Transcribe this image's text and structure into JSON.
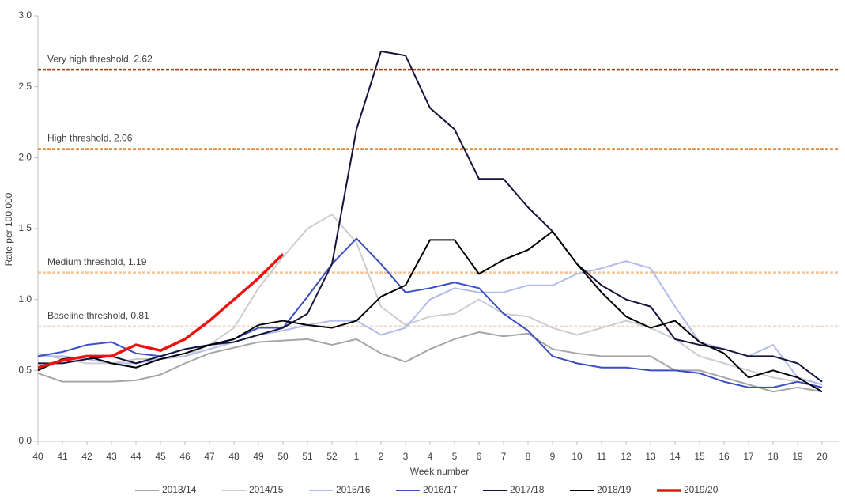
{
  "chart_data": {
    "type": "line",
    "y_label": "Rate per 100,000",
    "x_label": "Week number",
    "categories": [
      "40",
      "41",
      "42",
      "43",
      "44",
      "45",
      "46",
      "47",
      "48",
      "49",
      "50",
      "51",
      "52",
      "1",
      "2",
      "3",
      "4",
      "5",
      "6",
      "7",
      "8",
      "9",
      "10",
      "11",
      "12",
      "13",
      "14",
      "15",
      "16",
      "17",
      "18",
      "19",
      "20"
    ],
    "ylim": [
      0,
      3
    ],
    "yticks": [
      {
        "value": 0,
        "label": "0.0"
      },
      0.5,
      {
        "value": 1,
        "label": "1.0"
      },
      1.5,
      {
        "value": 2,
        "label": "2.0"
      },
      2.5,
      {
        "value": 3,
        "label": "3.0"
      }
    ],
    "thresholds": [
      {
        "label": "Very high threshold, 2.62",
        "value": 2.62,
        "color": "#a0420c"
      },
      {
        "label": "High threshold, 2.06",
        "value": 2.06,
        "color": "#e0761a"
      },
      {
        "label": "Medium threshold, 1.19",
        "value": 1.19,
        "color": "#f5c497"
      },
      {
        "label": "Baseline threshold, 0.81",
        "value": 0.81,
        "color": "#f3d5c8"
      }
    ],
    "series": [
      {
        "name": "2013/14",
        "color": "#a6a6a6",
        "width": 2,
        "values": [
          0.48,
          0.42,
          0.42,
          0.42,
          0.43,
          0.47,
          0.55,
          0.62,
          0.66,
          0.7,
          0.71,
          0.72,
          0.68,
          0.72,
          0.62,
          0.56,
          0.65,
          0.72,
          0.77,
          0.74,
          0.76,
          0.65,
          0.62,
          0.6,
          0.6,
          0.6,
          0.5,
          0.5,
          0.45,
          0.4,
          0.35,
          0.38,
          0.35
        ]
      },
      {
        "name": "2014/15",
        "color": "#cdcdcd",
        "width": 2,
        "values": [
          0.62,
          0.58,
          0.55,
          0.55,
          0.58,
          0.58,
          0.6,
          0.68,
          0.8,
          1.08,
          1.3,
          1.5,
          1.6,
          1.4,
          0.95,
          0.82,
          0.88,
          0.9,
          1.0,
          0.9,
          0.88,
          0.8,
          0.75,
          0.8,
          0.85,
          0.8,
          0.72,
          0.6,
          0.55,
          0.5,
          0.45,
          0.42,
          0.38
        ]
      },
      {
        "name": "2015/16",
        "color": "#b3bbec",
        "width": 2,
        "values": [
          0.6,
          0.6,
          0.58,
          0.55,
          0.55,
          0.58,
          0.6,
          0.65,
          0.7,
          0.75,
          0.78,
          0.82,
          0.85,
          0.85,
          0.75,
          0.8,
          1.0,
          1.08,
          1.05,
          1.05,
          1.1,
          1.1,
          1.18,
          1.22,
          1.27,
          1.22,
          0.95,
          0.7,
          0.65,
          0.6,
          0.68,
          0.45,
          0.4
        ]
      },
      {
        "name": "2016/17",
        "color": "#3a4fc4",
        "width": 2,
        "values": [
          0.6,
          0.63,
          0.68,
          0.7,
          0.62,
          0.6,
          0.65,
          0.68,
          0.72,
          0.8,
          0.8,
          1.02,
          1.25,
          1.43,
          1.25,
          1.05,
          1.08,
          1.12,
          1.08,
          0.9,
          0.78,
          0.6,
          0.55,
          0.52,
          0.52,
          0.5,
          0.5,
          0.48,
          0.42,
          0.38,
          0.38,
          0.42,
          0.38
        ]
      },
      {
        "name": "2017/18",
        "color": "#14143c",
        "width": 2,
        "values": [
          0.55,
          0.55,
          0.58,
          0.6,
          0.55,
          0.6,
          0.65,
          0.68,
          0.7,
          0.75,
          0.8,
          0.9,
          1.25,
          2.2,
          2.75,
          2.72,
          2.35,
          2.2,
          1.85,
          1.85,
          1.65,
          1.48,
          1.25,
          1.1,
          1.0,
          0.95,
          0.72,
          0.68,
          0.65,
          0.6,
          0.6,
          0.55,
          0.42
        ]
      },
      {
        "name": "2018/19",
        "color": "#000000",
        "width": 2,
        "values": [
          0.5,
          0.58,
          0.6,
          0.55,
          0.52,
          0.58,
          0.62,
          0.68,
          0.72,
          0.82,
          0.85,
          0.82,
          0.8,
          0.85,
          1.02,
          1.1,
          1.42,
          1.42,
          1.18,
          1.28,
          1.35,
          1.48,
          1.25,
          1.05,
          0.88,
          0.8,
          0.85,
          0.7,
          0.62,
          0.45,
          0.5,
          0.45,
          0.35
        ]
      },
      {
        "name": "2019/20",
        "color": "#ee1111",
        "width": 3.5,
        "values": [
          0.52,
          0.57,
          0.6,
          0.6,
          0.68,
          0.64,
          0.72,
          0.85,
          1.0,
          1.15,
          1.32,
          null,
          null,
          null,
          null,
          null,
          null,
          null,
          null,
          null,
          null,
          null,
          null,
          null,
          null,
          null,
          null,
          null,
          null,
          null,
          null,
          null,
          null
        ]
      }
    ]
  }
}
